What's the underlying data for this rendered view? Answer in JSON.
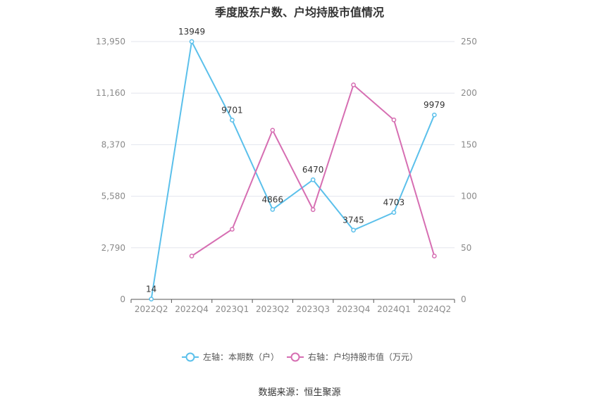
{
  "title": "季度股东户数、户均持股市值情况",
  "source": "数据来源：恒生聚源",
  "colors": {
    "left_series": "#5bc0eb",
    "right_series": "#d66eb2",
    "grid": "#e3e6ee",
    "axis_text": "#8a8a8a",
    "label_text": "#333333"
  },
  "chart_data": {
    "type": "line",
    "categories": [
      "2022Q2",
      "2022Q4",
      "2023Q1",
      "2023Q2",
      "2023Q3",
      "2023Q4",
      "2024Q1",
      "2024Q2"
    ],
    "left_axis": {
      "ticks": [
        0,
        2790,
        5580,
        8370,
        11160,
        13950
      ],
      "tick_labels": [
        "0",
        "2,790",
        "5,580",
        "8,370",
        "11,160",
        "13,950"
      ],
      "ylim": [
        0,
        13950
      ]
    },
    "right_axis": {
      "ticks": [
        0,
        50,
        100,
        150,
        200,
        250
      ],
      "tick_labels": [
        "0",
        "50",
        "100",
        "150",
        "200",
        "250"
      ],
      "ylim": [
        0,
        250
      ]
    },
    "series": [
      {
        "name": "左轴：本期数（户）",
        "axis": "left",
        "values": [
          14,
          13949,
          9701,
          4866,
          6470,
          3745,
          4703,
          9979
        ],
        "labels": [
          "14",
          "13949",
          "9701",
          "4866",
          "6470",
          "3745",
          "4703",
          "9979"
        ]
      },
      {
        "name": "右轴：户均持股市值（万元）",
        "axis": "right",
        "values": [
          null,
          42,
          68,
          164,
          87,
          208,
          174,
          42
        ]
      }
    ],
    "grid": true,
    "legend_position": "bottom-center"
  }
}
